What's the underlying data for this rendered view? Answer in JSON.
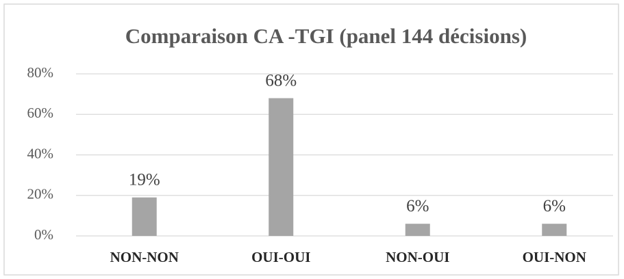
{
  "chart_data": {
    "type": "bar",
    "title": "Comparaison CA -TGI (panel 144 décisions)",
    "categories": [
      "NON-NON",
      "OUI-OUI",
      "NON-OUI",
      "OUI-NON"
    ],
    "values": [
      19,
      68,
      6,
      6
    ],
    "value_labels": [
      "19%",
      "68%",
      "6%",
      "6%"
    ],
    "color": "#a5a5a5",
    "ylim": [
      0,
      80
    ],
    "yticks": [
      {
        "value": 0,
        "label": "0%"
      },
      {
        "value": 20,
        "label": "20%"
      },
      {
        "value": 40,
        "label": "40%"
      },
      {
        "value": 60,
        "label": "60%"
      },
      {
        "value": 80,
        "label": "80%"
      }
    ],
    "grid": true
  }
}
